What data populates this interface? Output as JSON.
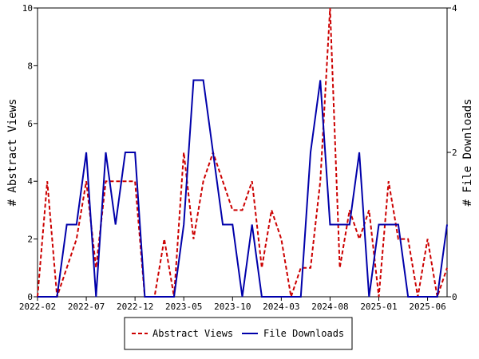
{
  "chart_data": {
    "type": "line",
    "xlabel": "",
    "ylabel_left": "# Abstract Views",
    "ylabel_right": "# File Downloads",
    "ylim_left": [
      0,
      10
    ],
    "ylim_right": [
      0,
      4
    ],
    "yticks_left": [
      "0",
      "2",
      "4",
      "6",
      "8",
      "10"
    ],
    "yticks_right": [
      "0",
      "2",
      "4"
    ],
    "x_tick_labels": [
      "2022-02",
      "2022-07",
      "2022-12",
      "2023-05",
      "2023-10",
      "2024-03",
      "2024-08",
      "2025-01",
      "2025-06"
    ],
    "x": [
      "2022-02",
      "2022-03",
      "2022-04",
      "2022-05",
      "2022-06",
      "2022-07",
      "2022-08",
      "2022-09",
      "2022-10",
      "2022-11",
      "2022-12",
      "2023-01",
      "2023-02",
      "2023-03",
      "2023-04",
      "2023-05",
      "2023-06",
      "2023-07",
      "2023-08",
      "2023-09",
      "2023-10",
      "2023-11",
      "2023-12",
      "2024-01",
      "2024-02",
      "2024-03",
      "2024-04",
      "2024-05",
      "2024-06",
      "2024-07",
      "2024-08",
      "2024-09",
      "2024-10",
      "2024-11",
      "2024-12",
      "2025-01",
      "2025-02",
      "2025-03",
      "2025-04",
      "2025-05",
      "2025-06",
      "2025-07",
      "2025-08"
    ],
    "grid": false,
    "legend": "bottom",
    "series": [
      {
        "name": "Abstract Views",
        "axis": "left",
        "color": "#cc0000",
        "dash": true,
        "values": [
          0,
          4,
          0,
          1,
          2,
          4,
          1,
          4,
          4,
          4,
          4,
          0,
          0,
          2,
          0,
          5,
          2,
          4,
          5,
          4,
          3,
          3,
          4,
          1,
          3,
          2,
          0,
          1,
          1,
          4,
          10,
          1,
          3,
          2,
          3,
          0,
          4,
          2,
          2,
          0,
          2,
          0,
          1
        ]
      },
      {
        "name": "File Downloads",
        "axis": "right",
        "color": "#0000aa",
        "dash": false,
        "values": [
          0,
          0,
          0,
          1,
          1,
          2,
          0,
          2,
          1,
          2,
          2,
          0,
          0,
          0,
          0,
          1,
          3,
          3,
          2,
          1,
          1,
          0,
          1,
          0,
          0,
          0,
          0,
          0,
          2,
          3,
          1,
          1,
          1,
          2,
          0,
          1,
          1,
          1,
          0,
          0,
          0,
          0,
          1
        ]
      }
    ]
  }
}
